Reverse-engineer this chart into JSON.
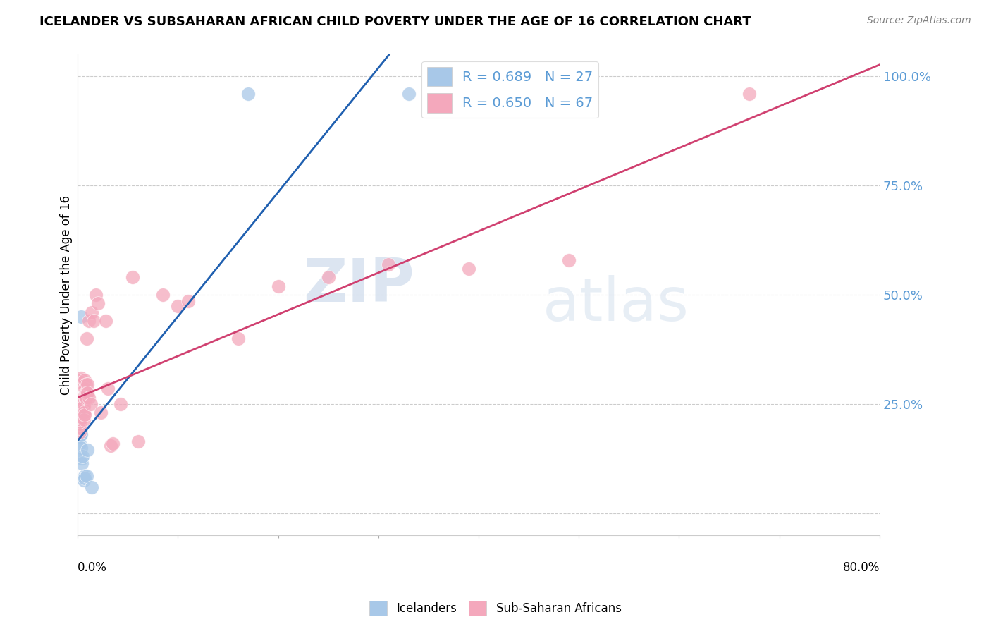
{
  "title": "ICELANDER VS SUBSAHARAN AFRICAN CHILD POVERTY UNDER THE AGE OF 16 CORRELATION CHART",
  "source": "Source: ZipAtlas.com",
  "ylabel": "Child Poverty Under the Age of 16",
  "ytick_values": [
    0.0,
    0.25,
    0.5,
    0.75,
    1.0
  ],
  "ytick_labels": [
    "",
    "25.0%",
    "50.0%",
    "75.0%",
    "100.0%"
  ],
  "xtick_labels_ends": [
    "0.0%",
    "80.0%"
  ],
  "xlim": [
    0.0,
    0.8
  ],
  "ylim": [
    -0.05,
    1.05
  ],
  "watermark_zip": "ZIP",
  "watermark_atlas": "atlas",
  "legend_blue_label": "R = 0.689   N = 27",
  "legend_pink_label": "R = 0.650   N = 67",
  "bottom_legend_blue": "Icelanders",
  "bottom_legend_pink": "Sub-Saharan Africans",
  "blue_color": "#A8C8E8",
  "pink_color": "#F4A8BC",
  "blue_line_color": "#2060B0",
  "pink_line_color": "#D04070",
  "blue_scatter": [
    [
      0.001,
      0.195
    ],
    [
      0.001,
      0.215
    ],
    [
      0.001,
      0.205
    ],
    [
      0.002,
      0.2
    ],
    [
      0.002,
      0.215
    ],
    [
      0.002,
      0.225
    ],
    [
      0.002,
      0.195
    ],
    [
      0.002,
      0.175
    ],
    [
      0.002,
      0.185
    ],
    [
      0.002,
      0.21
    ],
    [
      0.002,
      0.16
    ],
    [
      0.003,
      0.22
    ],
    [
      0.003,
      0.195
    ],
    [
      0.003,
      0.18
    ],
    [
      0.003,
      0.15
    ],
    [
      0.003,
      0.45
    ],
    [
      0.004,
      0.125
    ],
    [
      0.004,
      0.115
    ],
    [
      0.005,
      0.13
    ],
    [
      0.006,
      0.075
    ],
    [
      0.007,
      0.085
    ],
    [
      0.007,
      0.08
    ],
    [
      0.009,
      0.085
    ],
    [
      0.01,
      0.145
    ],
    [
      0.014,
      0.06
    ],
    [
      0.17,
      0.96
    ],
    [
      0.33,
      0.96
    ]
  ],
  "pink_scatter": [
    [
      0.001,
      0.19
    ],
    [
      0.001,
      0.205
    ],
    [
      0.001,
      0.195
    ],
    [
      0.001,
      0.215
    ],
    [
      0.002,
      0.2
    ],
    [
      0.002,
      0.215
    ],
    [
      0.002,
      0.195
    ],
    [
      0.002,
      0.22
    ],
    [
      0.002,
      0.185
    ],
    [
      0.002,
      0.205
    ],
    [
      0.002,
      0.195
    ],
    [
      0.002,
      0.21
    ],
    [
      0.003,
      0.22
    ],
    [
      0.003,
      0.3
    ],
    [
      0.003,
      0.215
    ],
    [
      0.003,
      0.225
    ],
    [
      0.003,
      0.305
    ],
    [
      0.003,
      0.31
    ],
    [
      0.004,
      0.245
    ],
    [
      0.004,
      0.3
    ],
    [
      0.004,
      0.255
    ],
    [
      0.004,
      0.235
    ],
    [
      0.005,
      0.225
    ],
    [
      0.005,
      0.255
    ],
    [
      0.005,
      0.22
    ],
    [
      0.005,
      0.245
    ],
    [
      0.006,
      0.235
    ],
    [
      0.006,
      0.225
    ],
    [
      0.006,
      0.245
    ],
    [
      0.006,
      0.23
    ],
    [
      0.006,
      0.215
    ],
    [
      0.007,
      0.305
    ],
    [
      0.007,
      0.285
    ],
    [
      0.007,
      0.27
    ],
    [
      0.007,
      0.225
    ],
    [
      0.008,
      0.295
    ],
    [
      0.008,
      0.275
    ],
    [
      0.008,
      0.265
    ],
    [
      0.009,
      0.275
    ],
    [
      0.009,
      0.4
    ],
    [
      0.01,
      0.295
    ],
    [
      0.01,
      0.275
    ],
    [
      0.011,
      0.265
    ],
    [
      0.011,
      0.44
    ],
    [
      0.013,
      0.25
    ],
    [
      0.014,
      0.46
    ],
    [
      0.016,
      0.44
    ],
    [
      0.018,
      0.5
    ],
    [
      0.02,
      0.48
    ],
    [
      0.023,
      0.23
    ],
    [
      0.028,
      0.44
    ],
    [
      0.03,
      0.285
    ],
    [
      0.033,
      0.155
    ],
    [
      0.035,
      0.16
    ],
    [
      0.043,
      0.25
    ],
    [
      0.055,
      0.54
    ],
    [
      0.06,
      0.165
    ],
    [
      0.085,
      0.5
    ],
    [
      0.1,
      0.475
    ],
    [
      0.11,
      0.485
    ],
    [
      0.16,
      0.4
    ],
    [
      0.2,
      0.52
    ],
    [
      0.25,
      0.54
    ],
    [
      0.31,
      0.57
    ],
    [
      0.39,
      0.56
    ],
    [
      0.49,
      0.58
    ],
    [
      0.67,
      0.96
    ]
  ]
}
